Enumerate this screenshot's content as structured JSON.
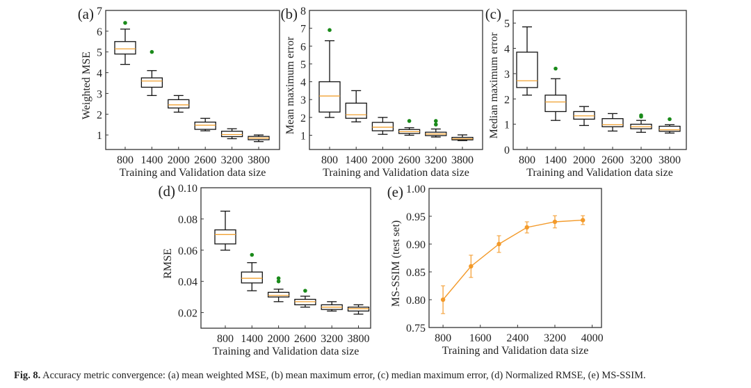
{
  "caption": {
    "label": "Fig. 8.",
    "text": "Accuracy metric convergence: (a) mean weighted MSE, (b) mean maximum error, (c) median maximum error, (d) Normalized RMSE, (e) MS-SSIM."
  },
  "colors": {
    "median": "#f0a030",
    "outlier": "#1a8a1a",
    "line": "#f39a2a",
    "axis": "#333333"
  },
  "chart_data": [
    {
      "type": "box",
      "panel": "(a)",
      "ylabel": "Weighted MSE",
      "xlabel": "Training and Validation data size",
      "categories": [
        "800",
        "1400",
        "2000",
        "2600",
        "3200",
        "3800"
      ],
      "ylim": [
        0.3,
        7
      ],
      "yticks": [
        1,
        2,
        3,
        4,
        5,
        6,
        7
      ],
      "boxes": [
        {
          "whislo": 4.4,
          "q1": 4.9,
          "med": 5.15,
          "q3": 5.5,
          "whishi": 6.1,
          "fliers": [
            6.4
          ]
        },
        {
          "whislo": 2.9,
          "q1": 3.3,
          "med": 3.6,
          "q3": 3.75,
          "whishi": 4.1,
          "fliers": [
            5.0
          ]
        },
        {
          "whislo": 2.1,
          "q1": 2.3,
          "med": 2.45,
          "q3": 2.7,
          "whishi": 2.9,
          "fliers": []
        },
        {
          "whislo": 1.2,
          "q1": 1.27,
          "med": 1.47,
          "q3": 1.62,
          "whishi": 1.8,
          "fliers": []
        },
        {
          "whislo": 0.82,
          "q1": 0.92,
          "med": 1.02,
          "q3": 1.18,
          "whishi": 1.3,
          "fliers": []
        },
        {
          "whislo": 0.68,
          "q1": 0.77,
          "med": 0.85,
          "q3": 0.93,
          "whishi": 1.0,
          "fliers": []
        }
      ]
    },
    {
      "type": "box",
      "panel": "(b)",
      "ylabel": "Mean maximum error",
      "xlabel": "Training and Validation data size",
      "categories": [
        "800",
        "1400",
        "2000",
        "2600",
        "3200",
        "3800"
      ],
      "ylim": [
        0.2,
        8
      ],
      "yticks": [
        1,
        2,
        3,
        4,
        5,
        6,
        7,
        8
      ],
      "boxes": [
        {
          "whislo": 2.0,
          "q1": 2.3,
          "med": 3.2,
          "q3": 4.0,
          "whishi": 6.3,
          "fliers": [
            6.9
          ]
        },
        {
          "whislo": 1.75,
          "q1": 1.95,
          "med": 2.15,
          "q3": 2.8,
          "whishi": 3.5,
          "fliers": []
        },
        {
          "whislo": 1.05,
          "q1": 1.25,
          "med": 1.45,
          "q3": 1.72,
          "whishi": 2.0,
          "fliers": []
        },
        {
          "whislo": 1.0,
          "q1": 1.1,
          "med": 1.2,
          "q3": 1.32,
          "whishi": 1.42,
          "fliers": [
            1.8
          ]
        },
        {
          "whislo": 0.9,
          "q1": 0.98,
          "med": 1.07,
          "q3": 1.17,
          "whishi": 1.35,
          "fliers": [
            1.6,
            1.8
          ]
        },
        {
          "whislo": 0.7,
          "q1": 0.74,
          "med": 0.8,
          "q3": 0.88,
          "whishi": 1.02,
          "fliers": []
        }
      ]
    },
    {
      "type": "box",
      "panel": "(c)",
      "ylabel": "Median maximum error",
      "xlabel": "Training and Validation data size",
      "categories": [
        "800",
        "1400",
        "2000",
        "2600",
        "3200",
        "3800"
      ],
      "ylim": [
        0,
        5.5
      ],
      "yticks": [
        0,
        1,
        2,
        3,
        4,
        5
      ],
      "boxes": [
        {
          "whislo": 2.15,
          "q1": 2.45,
          "med": 2.72,
          "q3": 3.85,
          "whishi": 4.85,
          "fliers": []
        },
        {
          "whislo": 1.15,
          "q1": 1.5,
          "med": 1.88,
          "q3": 2.15,
          "whishi": 2.8,
          "fliers": [
            3.2
          ]
        },
        {
          "whislo": 0.95,
          "q1": 1.2,
          "med": 1.33,
          "q3": 1.5,
          "whishi": 1.7,
          "fliers": []
        },
        {
          "whislo": 0.73,
          "q1": 0.9,
          "med": 0.98,
          "q3": 1.22,
          "whishi": 1.42,
          "fliers": []
        },
        {
          "whislo": 0.68,
          "q1": 0.82,
          "med": 0.9,
          "q3": 1.0,
          "whishi": 1.15,
          "fliers": [
            1.3,
            1.35
          ]
        },
        {
          "whislo": 0.65,
          "q1": 0.72,
          "med": 0.78,
          "q3": 0.92,
          "whishi": 0.98,
          "fliers": [
            1.2
          ]
        }
      ]
    },
    {
      "type": "box",
      "panel": "(d)",
      "ylabel": "RMSE",
      "xlabel": "Training and Validation data size",
      "categories": [
        "800",
        "1400",
        "2000",
        "2600",
        "3200",
        "3800"
      ],
      "ylim": [
        0.01,
        0.1
      ],
      "yticks": [
        0.02,
        0.04,
        0.06,
        0.08,
        0.1
      ],
      "tickdecimals": 2,
      "boxes": [
        {
          "whislo": 0.06,
          "q1": 0.064,
          "med": 0.07,
          "q3": 0.073,
          "whishi": 0.085,
          "fliers": []
        },
        {
          "whislo": 0.034,
          "q1": 0.039,
          "med": 0.042,
          "q3": 0.046,
          "whishi": 0.052,
          "fliers": [
            0.057
          ]
        },
        {
          "whislo": 0.027,
          "q1": 0.03,
          "med": 0.031,
          "q3": 0.033,
          "whishi": 0.035,
          "fliers": [
            0.04,
            0.042
          ]
        },
        {
          "whislo": 0.0235,
          "q1": 0.025,
          "med": 0.027,
          "q3": 0.0285,
          "whishi": 0.0305,
          "fliers": [
            0.034
          ]
        },
        {
          "whislo": 0.021,
          "q1": 0.022,
          "med": 0.0235,
          "q3": 0.025,
          "whishi": 0.027,
          "fliers": []
        },
        {
          "whislo": 0.019,
          "q1": 0.021,
          "med": 0.0225,
          "q3": 0.0235,
          "whishi": 0.025,
          "fliers": []
        }
      ]
    },
    {
      "type": "line",
      "panel": "(e)",
      "ylabel": "MS-SSIM (test set)",
      "xlabel": "Training and Validation data size",
      "xlim": [
        500,
        4200
      ],
      "xticks": [
        800,
        1600,
        2400,
        3200,
        4000
      ],
      "ylim": [
        0.75,
        1.0
      ],
      "yticks": [
        0.75,
        0.8,
        0.85,
        0.9,
        0.95,
        1.0
      ],
      "tickdecimals": 2,
      "x": [
        800,
        1400,
        2000,
        2600,
        3200,
        3800
      ],
      "y": [
        0.8,
        0.86,
        0.9,
        0.93,
        0.94,
        0.943
      ],
      "err": [
        0.025,
        0.02,
        0.015,
        0.01,
        0.011,
        0.008
      ]
    }
  ]
}
